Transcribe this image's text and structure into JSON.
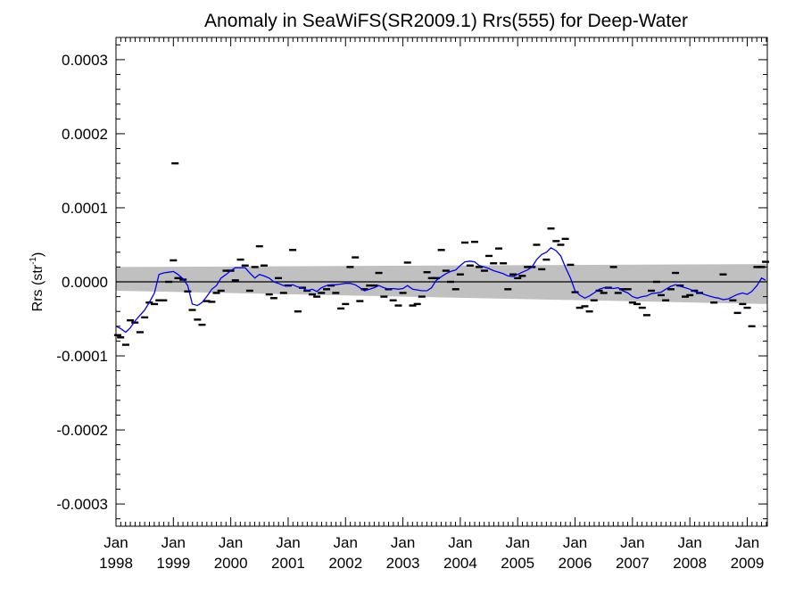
{
  "chart_data": {
    "type": "scatter",
    "title": "Anomaly in SeaWiFS(SR2009.1) Rrs(555) for Deep-Water",
    "ylabel": "Rrs (str",
    "ylabel_sup": "-1",
    "ylabel_end": ")",
    "xlim": [
      1998.0,
      2009.35
    ],
    "ylim": [
      -0.00033,
      0.00033
    ],
    "x_ticks": [
      {
        "month": "Jan",
        "year": "1998",
        "x": 1998
      },
      {
        "month": "Jan",
        "year": "1999",
        "x": 1999
      },
      {
        "month": "Jan",
        "year": "2000",
        "x": 2000
      },
      {
        "month": "Jan",
        "year": "2001",
        "x": 2001
      },
      {
        "month": "Jan",
        "year": "2002",
        "x": 2002
      },
      {
        "month": "Jan",
        "year": "2003",
        "x": 2003
      },
      {
        "month": "Jan",
        "year": "2004",
        "x": 2004
      },
      {
        "month": "Jan",
        "year": "2005",
        "x": 2005
      },
      {
        "month": "Jan",
        "year": "2006",
        "x": 2006
      },
      {
        "month": "Jan",
        "year": "2007",
        "x": 2007
      },
      {
        "month": "Jan",
        "year": "2008",
        "x": 2008
      },
      {
        "month": "Jan",
        "year": "2009",
        "x": 2009
      }
    ],
    "y_ticks": [
      {
        "label": "0.0003",
        "v": 0.0003
      },
      {
        "label": "0.0002",
        "v": 0.0002
      },
      {
        "label": "0.0001",
        "v": 0.0001
      },
      {
        "label": "0.0000",
        "v": 0.0
      },
      {
        "label": "-0.0001",
        "v": -0.0001
      },
      {
        "label": "-0.0002",
        "v": -0.0002
      },
      {
        "label": "-0.0003",
        "v": -0.0003
      }
    ],
    "reference_line": 0.0,
    "band": {
      "x": [
        1998.0,
        2009.35
      ],
      "upper": [
        2e-05,
        2.4e-05
      ],
      "lower": [
        -1.2e-05,
        -3e-05
      ]
    },
    "series": [
      {
        "type": "scatter",
        "color": "#000000",
        "points": [
          [
            1998.03,
            -7.2e-05
          ],
          [
            1998.08,
            -7.5e-05
          ],
          [
            1998.17,
            -8.5e-05
          ],
          [
            1998.25,
            -5.2e-05
          ],
          [
            1998.33,
            -5.5e-05
          ],
          [
            1998.42,
            -6.8e-05
          ],
          [
            1998.5,
            -4.8e-05
          ],
          [
            1998.58,
            -2.8e-05
          ],
          [
            1998.67,
            -3e-05
          ],
          [
            1998.75,
            -2.5e-05
          ],
          [
            1998.83,
            -2.5e-05
          ],
          [
            1998.92,
            0.0
          ],
          [
            1999.0,
            2.9e-05
          ],
          [
            1999.03,
            0.00016
          ],
          [
            1999.08,
            5e-06
          ],
          [
            1999.17,
            3e-06
          ],
          [
            1999.25,
            -1.3e-05
          ],
          [
            1999.33,
            -3.8e-05
          ],
          [
            1999.42,
            -5.1e-05
          ],
          [
            1999.5,
            -5.8e-05
          ],
          [
            1999.58,
            -2.6e-05
          ],
          [
            1999.67,
            -2.7e-05
          ],
          [
            1999.75,
            -1.5e-05
          ],
          [
            1999.83,
            -1.2e-05
          ],
          [
            1999.92,
            1.5e-05
          ],
          [
            2000.0,
            1.5e-05
          ],
          [
            2000.08,
            2e-06
          ],
          [
            2000.17,
            3e-05
          ],
          [
            2000.25,
            2.2e-05
          ],
          [
            2000.33,
            -1.2e-05
          ],
          [
            2000.42,
            2e-05
          ],
          [
            2000.5,
            4.8e-05
          ],
          [
            2000.58,
            2.2e-05
          ],
          [
            2000.67,
            -1.7e-05
          ],
          [
            2000.75,
            -2.2e-05
          ],
          [
            2000.83,
            5e-06
          ],
          [
            2000.92,
            -1.5e-05
          ],
          [
            2001.0,
            -5e-06
          ],
          [
            2001.08,
            4.3e-05
          ],
          [
            2001.17,
            -4e-05
          ],
          [
            2001.25,
            -8e-06
          ],
          [
            2001.33,
            -1.2e-05
          ],
          [
            2001.42,
            -1.7e-05
          ],
          [
            2001.5,
            -2e-05
          ],
          [
            2001.58,
            -1.5e-05
          ],
          [
            2001.67,
            -1e-05
          ],
          [
            2001.75,
            -5e-06
          ],
          [
            2001.83,
            -1.5e-05
          ],
          [
            2001.92,
            -3.6e-05
          ],
          [
            2002.0,
            -3e-05
          ],
          [
            2002.08,
            2e-05
          ],
          [
            2002.17,
            3.3e-05
          ],
          [
            2002.25,
            -2.6e-05
          ],
          [
            2002.33,
            -1e-05
          ],
          [
            2002.42,
            -5e-06
          ],
          [
            2002.5,
            -5e-06
          ],
          [
            2002.58,
            1.2e-05
          ],
          [
            2002.67,
            -2e-05
          ],
          [
            2002.75,
            -1e-05
          ],
          [
            2002.83,
            -2.5e-05
          ],
          [
            2002.92,
            -3.2e-05
          ],
          [
            2003.0,
            -1.5e-05
          ],
          [
            2003.08,
            2.6e-05
          ],
          [
            2003.17,
            -3.2e-05
          ],
          [
            2003.25,
            -3e-05
          ],
          [
            2003.33,
            -2e-05
          ],
          [
            2003.42,
            1.3e-05
          ],
          [
            2003.5,
            5e-06
          ],
          [
            2003.58,
            5e-06
          ],
          [
            2003.67,
            4.3e-05
          ],
          [
            2003.75,
            1.5e-05
          ],
          [
            2003.83,
            0.0
          ],
          [
            2003.92,
            -1e-05
          ],
          [
            2004.0,
            1e-05
          ],
          [
            2004.08,
            5.3e-05
          ],
          [
            2004.17,
            2.2e-05
          ],
          [
            2004.25,
            5.4e-05
          ],
          [
            2004.33,
            2e-05
          ],
          [
            2004.42,
            1.5e-05
          ],
          [
            2004.5,
            3.5e-05
          ],
          [
            2004.58,
            2.5e-05
          ],
          [
            2004.67,
            4.5e-05
          ],
          [
            2004.75,
            2.5e-05
          ],
          [
            2004.83,
            -1e-05
          ],
          [
            2004.92,
            1e-05
          ],
          [
            2005.0,
            5e-06
          ],
          [
            2005.08,
            8e-06
          ],
          [
            2005.17,
            2e-05
          ],
          [
            2005.25,
            2e-05
          ],
          [
            2005.33,
            5e-05
          ],
          [
            2005.42,
            1.7e-05
          ],
          [
            2005.5,
            3e-05
          ],
          [
            2005.58,
            7.2e-05
          ],
          [
            2005.67,
            5.5e-05
          ],
          [
            2005.75,
            5e-05
          ],
          [
            2005.83,
            5.8e-05
          ],
          [
            2005.92,
            2.3e-05
          ],
          [
            2006.0,
            -1.4e-05
          ],
          [
            2006.08,
            -3.5e-05
          ],
          [
            2006.17,
            -3.3e-05
          ],
          [
            2006.25,
            -4e-05
          ],
          [
            2006.33,
            -2.5e-05
          ],
          [
            2006.42,
            -1.2e-05
          ],
          [
            2006.5,
            -1.5e-05
          ],
          [
            2006.58,
            -8e-06
          ],
          [
            2006.67,
            2e-05
          ],
          [
            2006.75,
            -1.5e-05
          ],
          [
            2006.83,
            -1e-05
          ],
          [
            2006.92,
            -1e-05
          ],
          [
            2007.0,
            -2.8e-05
          ],
          [
            2007.08,
            -3e-05
          ],
          [
            2007.17,
            -3.5e-05
          ],
          [
            2007.25,
            -4.5e-05
          ],
          [
            2007.33,
            -1.2e-05
          ],
          [
            2007.42,
            0.0
          ],
          [
            2007.5,
            -1.8e-05
          ],
          [
            2007.58,
            -2.5e-05
          ],
          [
            2007.67,
            -1e-05
          ],
          [
            2007.75,
            1.2e-05
          ],
          [
            2007.83,
            -5e-06
          ],
          [
            2007.92,
            -2e-05
          ],
          [
            2008.0,
            -1.8e-05
          ],
          [
            2008.08,
            -1.2e-05
          ],
          [
            2008.17,
            -1.5e-05
          ],
          [
            2008.42,
            -2.8e-05
          ],
          [
            2008.58,
            1e-05
          ],
          [
            2008.75,
            -2.5e-05
          ],
          [
            2008.83,
            -4.2e-05
          ],
          [
            2008.92,
            -3e-05
          ],
          [
            2009.0,
            -3.5e-05
          ],
          [
            2009.08,
            -6e-05
          ],
          [
            2009.17,
            2e-05
          ],
          [
            2009.25,
            2e-05
          ],
          [
            2009.32,
            2.7e-05
          ]
        ]
      },
      {
        "type": "line",
        "color": "#0000ee",
        "points": [
          [
            1998.0,
            -6e-05
          ],
          [
            1998.08,
            -6.3e-05
          ],
          [
            1998.17,
            -6.8e-05
          ],
          [
            1998.25,
            -6.2e-05
          ],
          [
            1998.33,
            -5.3e-05
          ],
          [
            1998.42,
            -4.5e-05
          ],
          [
            1998.5,
            -3.8e-05
          ],
          [
            1998.58,
            -2.8e-05
          ],
          [
            1998.67,
            -1.5e-05
          ],
          [
            1998.75,
            1e-05
          ],
          [
            1998.83,
            1.2e-05
          ],
          [
            1998.92,
            1.3e-05
          ],
          [
            1999.0,
            1.4e-05
          ],
          [
            1999.08,
            1e-05
          ],
          [
            1999.17,
            4e-06
          ],
          [
            1999.25,
            -5e-06
          ],
          [
            1999.33,
            -3e-05
          ],
          [
            1999.42,
            -3.2e-05
          ],
          [
            1999.5,
            -2.8e-05
          ],
          [
            1999.58,
            -2e-05
          ],
          [
            1999.67,
            -1e-05
          ],
          [
            1999.75,
            -5e-06
          ],
          [
            1999.83,
            5e-06
          ],
          [
            1999.92,
            1e-05
          ],
          [
            2000.0,
            1.5e-05
          ],
          [
            2000.08,
            1.9e-05
          ],
          [
            2000.17,
            1.9e-05
          ],
          [
            2000.25,
            1.9e-05
          ],
          [
            2000.33,
            1.2e-05
          ],
          [
            2000.42,
            5e-06
          ],
          [
            2000.5,
            1e-05
          ],
          [
            2000.58,
            8e-06
          ],
          [
            2000.67,
            5e-06
          ],
          [
            2000.75,
            0.0
          ],
          [
            2000.83,
            -2e-06
          ],
          [
            2000.92,
            -5e-06
          ],
          [
            2001.0,
            -5e-06
          ],
          [
            2001.08,
            -4e-06
          ],
          [
            2001.17,
            -7e-06
          ],
          [
            2001.25,
            -8e-06
          ],
          [
            2001.33,
            -1.2e-05
          ],
          [
            2001.42,
            -1e-05
          ],
          [
            2001.5,
            -1.3e-05
          ],
          [
            2001.58,
            -8e-06
          ],
          [
            2001.67,
            -5e-06
          ],
          [
            2001.75,
            -4e-06
          ],
          [
            2001.83,
            -4e-06
          ],
          [
            2001.92,
            -3e-06
          ],
          [
            2002.0,
            -2e-06
          ],
          [
            2002.08,
            -2e-06
          ],
          [
            2002.17,
            -4e-06
          ],
          [
            2002.25,
            -8e-06
          ],
          [
            2002.33,
            -1.2e-05
          ],
          [
            2002.42,
            -1e-05
          ],
          [
            2002.5,
            -8e-06
          ],
          [
            2002.58,
            -5e-06
          ],
          [
            2002.67,
            -8e-06
          ],
          [
            2002.75,
            -1e-05
          ],
          [
            2002.83,
            -9e-06
          ],
          [
            2002.92,
            -1e-05
          ],
          [
            2003.0,
            -9e-06
          ],
          [
            2003.08,
            -5e-06
          ],
          [
            2003.17,
            -1e-05
          ],
          [
            2003.25,
            -1.1e-05
          ],
          [
            2003.33,
            -1.2e-05
          ],
          [
            2003.42,
            -1.2e-05
          ],
          [
            2003.5,
            -8e-06
          ],
          [
            2003.58,
            2e-06
          ],
          [
            2003.67,
            7e-06
          ],
          [
            2003.75,
            1.1e-05
          ],
          [
            2003.83,
            1.4e-05
          ],
          [
            2003.92,
            1.6e-05
          ],
          [
            2004.0,
            2.2e-05
          ],
          [
            2004.08,
            2.7e-05
          ],
          [
            2004.17,
            2.8e-05
          ],
          [
            2004.25,
            2.7e-05
          ],
          [
            2004.33,
            2.2e-05
          ],
          [
            2004.42,
            2e-05
          ],
          [
            2004.5,
            1.8e-05
          ],
          [
            2004.58,
            1.5e-05
          ],
          [
            2004.67,
            1.3e-05
          ],
          [
            2004.75,
            1.1e-05
          ],
          [
            2004.83,
            8e-06
          ],
          [
            2004.92,
            7e-06
          ],
          [
            2005.0,
            1e-05
          ],
          [
            2005.08,
            1.3e-05
          ],
          [
            2005.17,
            1.6e-05
          ],
          [
            2005.25,
            2e-05
          ],
          [
            2005.33,
            3e-05
          ],
          [
            2005.42,
            3.7e-05
          ],
          [
            2005.5,
            4e-05
          ],
          [
            2005.58,
            4.6e-05
          ],
          [
            2005.67,
            4.2e-05
          ],
          [
            2005.75,
            3.5e-05
          ],
          [
            2005.83,
            2e-05
          ],
          [
            2005.92,
            5e-06
          ],
          [
            2006.0,
            -1.2e-05
          ],
          [
            2006.08,
            -1.8e-05
          ],
          [
            2006.17,
            -2.2e-05
          ],
          [
            2006.25,
            -1.9e-05
          ],
          [
            2006.33,
            -1.5e-05
          ],
          [
            2006.42,
            -1e-05
          ],
          [
            2006.5,
            -8e-06
          ],
          [
            2006.58,
            -8e-06
          ],
          [
            2006.67,
            -9e-06
          ],
          [
            2006.75,
            -8e-06
          ],
          [
            2006.83,
            -1.2e-05
          ],
          [
            2006.92,
            -1.5e-05
          ],
          [
            2007.0,
            -2e-05
          ],
          [
            2007.08,
            -2.2e-05
          ],
          [
            2007.17,
            -2e-05
          ],
          [
            2007.25,
            -1.9e-05
          ],
          [
            2007.33,
            -1.6e-05
          ],
          [
            2007.42,
            -1.5e-05
          ],
          [
            2007.5,
            -1.4e-05
          ],
          [
            2007.58,
            -1e-05
          ],
          [
            2007.67,
            -6e-06
          ],
          [
            2007.75,
            -4e-06
          ],
          [
            2007.83,
            -6e-06
          ],
          [
            2007.92,
            -8e-06
          ],
          [
            2008.0,
            -1e-05
          ],
          [
            2008.08,
            -1.3e-05
          ],
          [
            2008.17,
            -1.5e-05
          ],
          [
            2008.25,
            -1.7e-05
          ],
          [
            2008.33,
            -1.9e-05
          ],
          [
            2008.42,
            -2.1e-05
          ],
          [
            2008.5,
            -2.2e-05
          ],
          [
            2008.58,
            -2.4e-05
          ],
          [
            2008.67,
            -2.3e-05
          ],
          [
            2008.75,
            -2e-05
          ],
          [
            2008.83,
            -1.7e-05
          ],
          [
            2008.92,
            -1.5e-05
          ],
          [
            2009.0,
            -1.7e-05
          ],
          [
            2009.08,
            -1.3e-05
          ],
          [
            2009.17,
            -5e-06
          ],
          [
            2009.25,
            5e-06
          ],
          [
            2009.32,
            2e-06
          ]
        ]
      }
    ]
  }
}
